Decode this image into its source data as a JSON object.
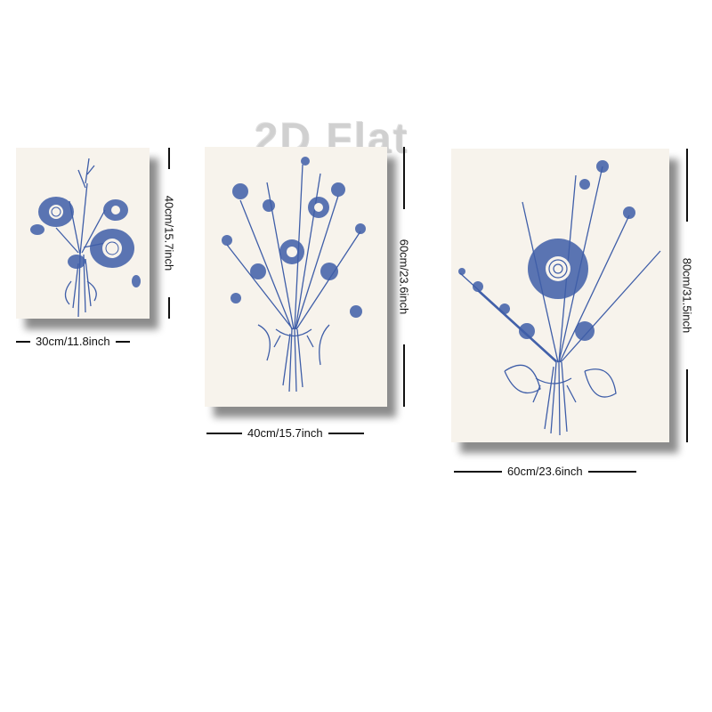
{
  "watermark": "2D Flat",
  "colors": {
    "ink": "#3f5ea8",
    "canvas": "#f7f3ec",
    "shadow": "#222222"
  },
  "panels": [
    {
      "name": "small",
      "width_label": "30cm/11.8inch",
      "height_label": "40cm/15.7inch"
    },
    {
      "name": "medium",
      "width_label": "40cm/15.7inch",
      "height_label": "60cm/23.6inch"
    },
    {
      "name": "large",
      "width_label": "60cm/23.6inch",
      "height_label": "80cm/31.5inch"
    }
  ]
}
